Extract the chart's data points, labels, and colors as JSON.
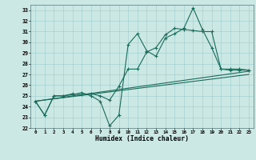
{
  "title": "",
  "xlabel": "Humidex (Indice chaleur)",
  "bg_color": "#cce8e4",
  "line_color": "#1a6b5a",
  "xlim_min": -0.5,
  "xlim_max": 23.5,
  "ylim_min": 22,
  "ylim_max": 33.5,
  "xticks": [
    0,
    1,
    2,
    3,
    4,
    5,
    6,
    7,
    8,
    9,
    10,
    11,
    12,
    13,
    14,
    15,
    16,
    17,
    18,
    19,
    20,
    21,
    22,
    23
  ],
  "yticks": [
    22,
    23,
    24,
    25,
    26,
    27,
    28,
    29,
    30,
    31,
    32,
    33
  ],
  "series1_x": [
    0,
    1,
    2,
    3,
    4,
    5,
    6,
    7,
    8,
    9,
    10,
    11,
    12,
    13,
    14,
    15,
    16,
    17,
    18,
    19,
    20,
    21,
    22,
    23
  ],
  "series1_y": [
    24.5,
    23.2,
    25.0,
    25.0,
    25.1,
    25.3,
    25.0,
    24.5,
    22.2,
    23.2,
    29.8,
    30.8,
    29.2,
    28.7,
    30.4,
    30.8,
    31.3,
    33.2,
    31.2,
    29.5,
    27.5,
    27.5,
    27.5,
    27.4
  ],
  "series2_x": [
    0,
    1,
    2,
    3,
    4,
    5,
    6,
    7,
    8,
    9,
    10,
    11,
    12,
    13,
    14,
    15,
    16,
    17,
    18,
    19,
    20,
    21,
    22,
    23
  ],
  "series2_y": [
    24.5,
    23.2,
    25.0,
    25.0,
    25.2,
    25.1,
    25.2,
    25.0,
    24.6,
    25.9,
    27.5,
    27.5,
    29.1,
    29.5,
    30.7,
    31.3,
    31.2,
    31.1,
    31.0,
    31.0,
    27.5,
    27.4,
    27.4,
    27.4
  ],
  "series3_x": [
    0,
    23
  ],
  "series3_y": [
    24.5,
    27.3
  ],
  "series4_x": [
    0,
    23
  ],
  "series4_y": [
    24.5,
    27.0
  ]
}
